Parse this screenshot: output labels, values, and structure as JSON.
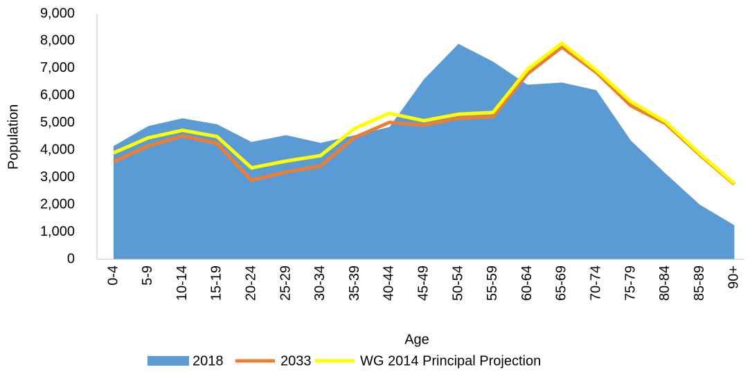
{
  "chart_data": {
    "type": "area",
    "x_label": "Age",
    "y_label": "Population",
    "categories": [
      "0-4",
      "5-9",
      "10-14",
      "15-19",
      "20-24",
      "25-29",
      "30-34",
      "35-39",
      "40-44",
      "45-49",
      "50-54",
      "55-59",
      "60-64",
      "65-69",
      "70-74",
      "75-79",
      "80-84",
      "85-89",
      "90+"
    ],
    "series": [
      {
        "name": "2018",
        "type": "area",
        "color": "#5b9bd5",
        "values": [
          4150,
          4880,
          5170,
          4950,
          4300,
          4550,
          4270,
          4550,
          4850,
          6600,
          7900,
          7250,
          6400,
          6480,
          6200,
          4350,
          3150,
          2000,
          1250
        ]
      },
      {
        "name": "2033",
        "type": "line",
        "color": "#ed7d31",
        "values": [
          3580,
          4150,
          4520,
          4250,
          2900,
          3200,
          3420,
          4470,
          5020,
          4920,
          5170,
          5230,
          6800,
          7780,
          6850,
          5630,
          4980,
          3830,
          2750
        ]
      },
      {
        "name": "WG 2014 Principal Projection",
        "type": "line",
        "color": "#ffff00",
        "values": [
          3900,
          4450,
          4730,
          4500,
          3350,
          3600,
          3800,
          4800,
          5350,
          5080,
          5320,
          5380,
          6950,
          7920,
          6930,
          5780,
          5050,
          3870,
          2780
        ]
      }
    ],
    "ylim": [
      0,
      9000
    ],
    "yticks": [
      0,
      {
        "value": 1000,
        "label": "1,000"
      },
      {
        "value": 2000,
        "label": "2,000"
      },
      {
        "value": 3000,
        "label": "3,000"
      },
      {
        "value": 4000,
        "label": "4,000"
      },
      {
        "value": 5000,
        "label": "5,000"
      },
      {
        "value": 6000,
        "label": "6,000"
      },
      {
        "value": 7000,
        "label": "7,000"
      },
      {
        "value": 8000,
        "label": "8,000"
      },
      {
        "value": 9000,
        "label": "9,000"
      }
    ],
    "grid": false,
    "legend": "bottom"
  }
}
